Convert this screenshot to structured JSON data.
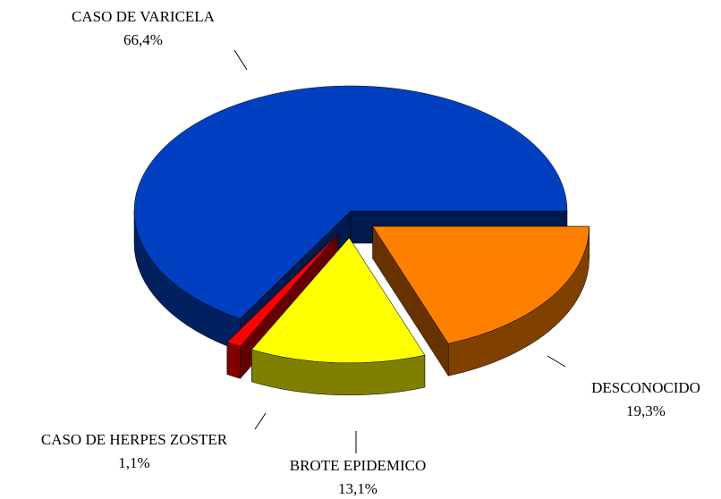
{
  "chart_data": {
    "type": "pie",
    "categories": [
      "DESCONOCIDO",
      "BROTE EPIDEMICO",
      "CASO DE HERPES ZOSTER",
      "CASO DE VARICELA"
    ],
    "values": [
      19.3,
      13.1,
      1.1,
      66.4
    ],
    "value_labels": [
      "19,3%",
      "13,1%",
      "1,1%",
      "66,4%"
    ],
    "colors": [
      "#ff8000",
      "#ffff00",
      "#ff0000",
      "#0040c0"
    ]
  }
}
